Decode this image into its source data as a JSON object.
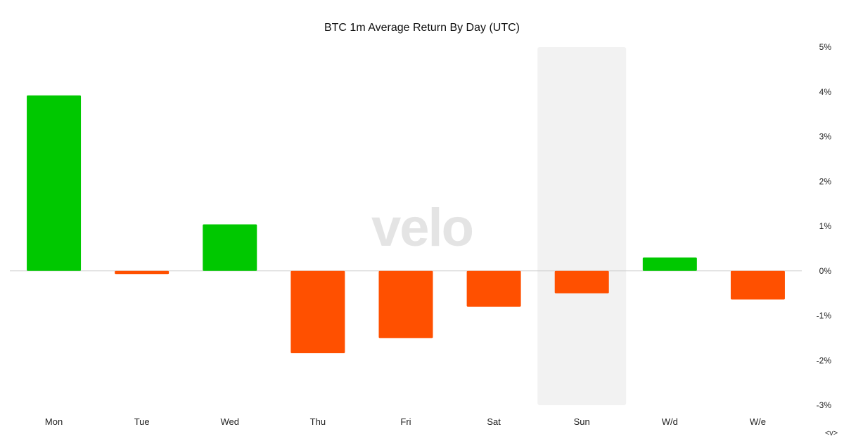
{
  "chart_data": {
    "type": "bar",
    "title": "BTC 1m Average Return By Day (UTC)",
    "categories": [
      "Mon",
      "Tue",
      "Wed",
      "Thu",
      "Fri",
      "Sat",
      "Sun",
      "W/d",
      "W/e"
    ],
    "values": [
      3.92,
      -0.07,
      1.04,
      -1.84,
      -1.5,
      -0.8,
      -0.5,
      0.3,
      -0.64
    ],
    "ylim": [
      -3,
      5
    ],
    "y_ticks": [
      5,
      4,
      3,
      2,
      1,
      0,
      -1,
      -2,
      -3
    ],
    "y_tick_labels": [
      "5%",
      "4%",
      "3%",
      "2%",
      "1%",
      "0%",
      "-1%",
      "-2%",
      "-3%"
    ],
    "y_axis_side": "right",
    "highlighted_category": "Sun",
    "xlabel": "",
    "ylabel": "",
    "grid": false,
    "legend": "none"
  },
  "colors": {
    "positive": "#00c800",
    "negative": "#ff5000",
    "highlight_band": "#f2f2f2",
    "zero_line": "#cccccc"
  },
  "watermark": "velo",
  "nav_hint": "<v>"
}
